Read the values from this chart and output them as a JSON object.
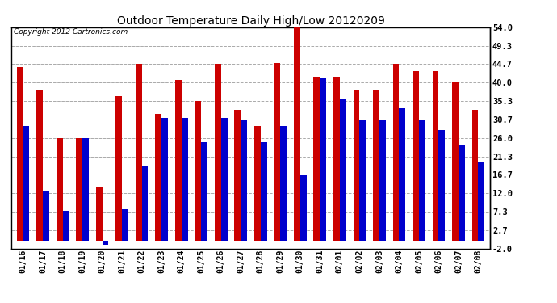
{
  "title": "Outdoor Temperature Daily High/Low 20120209",
  "copyright": "Copyright 2012 Cartronics.com",
  "dates": [
    "01/16",
    "01/17",
    "01/18",
    "01/19",
    "01/20",
    "01/21",
    "01/22",
    "01/23",
    "01/24",
    "01/25",
    "01/26",
    "01/27",
    "01/28",
    "01/29",
    "01/30",
    "01/31",
    "02/01",
    "02/02",
    "02/03",
    "02/04",
    "02/05",
    "02/06",
    "02/07",
    "02/08"
  ],
  "highs": [
    44.0,
    38.0,
    26.0,
    26.0,
    13.5,
    36.5,
    44.7,
    32.0,
    40.7,
    35.3,
    44.7,
    33.0,
    29.0,
    45.0,
    54.0,
    41.5,
    41.5,
    38.0,
    38.0,
    44.7,
    43.0,
    43.0,
    40.0,
    33.0
  ],
  "lows": [
    29.0,
    12.5,
    7.5,
    26.0,
    -1.0,
    8.0,
    19.0,
    31.0,
    31.0,
    25.0,
    31.0,
    30.7,
    25.0,
    29.0,
    16.5,
    41.0,
    36.0,
    30.5,
    30.7,
    33.5,
    30.7,
    28.0,
    24.0,
    20.0
  ],
  "high_color": "#cc0000",
  "low_color": "#0000cc",
  "bg_color": "#ffffff",
  "grid_color": "#aaaaaa",
  "ylim": [
    -2.0,
    54.0
  ],
  "yticks": [
    -2.0,
    2.7,
    7.3,
    12.0,
    16.7,
    21.3,
    26.0,
    30.7,
    35.3,
    40.0,
    44.7,
    49.3,
    54.0
  ],
  "bar_width": 0.32,
  "figwidth": 6.9,
  "figheight": 3.75,
  "dpi": 100
}
